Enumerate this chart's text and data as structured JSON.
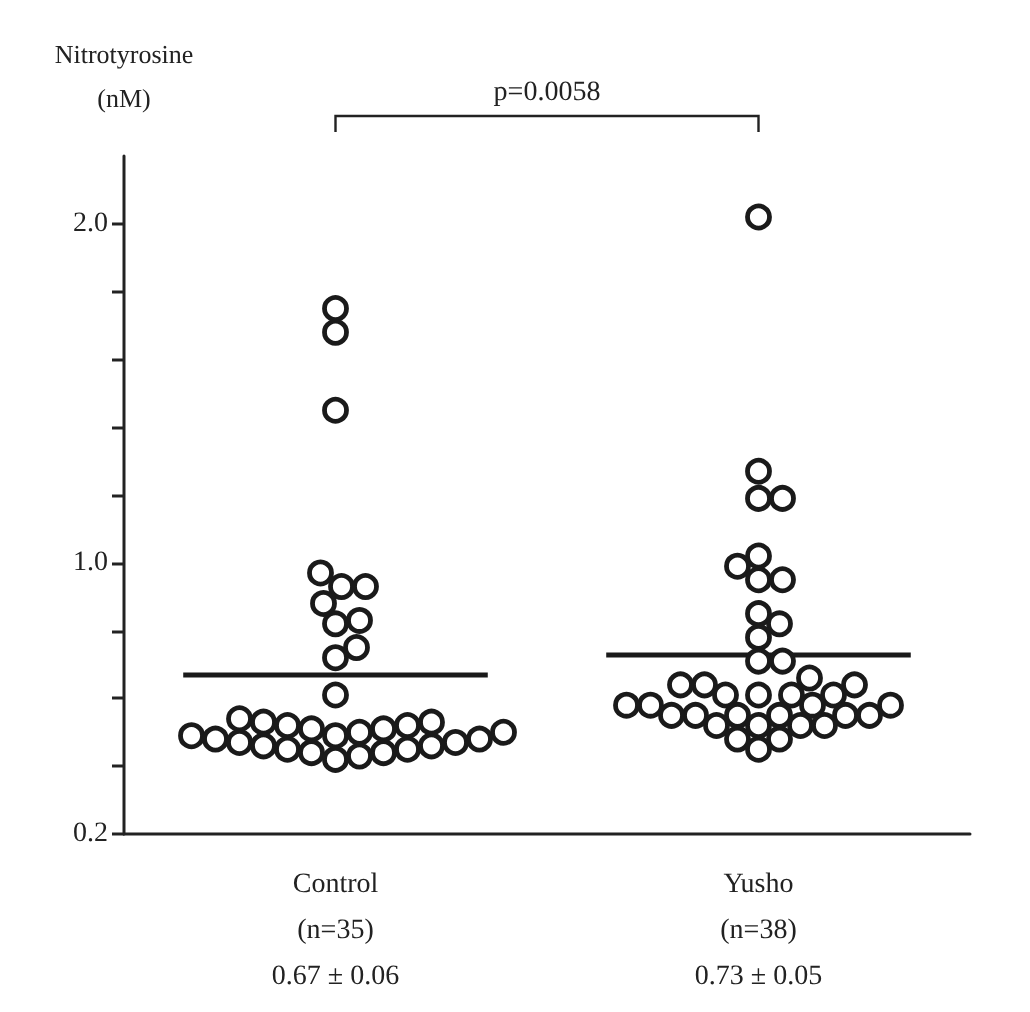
{
  "chart_data": {
    "type": "scatter",
    "ylabel": "Nitrotyrosine\n(nM)",
    "categories": [
      "Control\n(n=35)\n0.67 ± 0.06",
      "Yusho\n(n=38)\n0.73 ± 0.05"
    ],
    "ylim": [
      0.2,
      2.2
    ],
    "yticks": [
      0.2,
      {
        "value": 0.4,
        "label": null
      },
      {
        "value": 0.6,
        "label": null
      },
      {
        "value": 0.8,
        "label": null
      },
      {
        "value": 1.0,
        "label": "1.0"
      },
      {
        "value": 1.2,
        "label": null
      },
      {
        "value": 1.4,
        "label": null
      },
      {
        "value": 1.6,
        "label": null
      },
      {
        "value": 1.8,
        "label": null
      },
      {
        "value": 2.0,
        "label": "2.0"
      }
    ],
    "marker": "circle",
    "ref_lines": [
      {
        "axis": "y",
        "value": 0.67,
        "color": "#1a1a1a",
        "line_style": "solid"
      },
      {
        "axis": "y",
        "value": 0.73,
        "color": "#1a1a1a",
        "line_style": "solid"
      }
    ],
    "annotations": [
      "p=0.0058"
    ],
    "series": [
      {
        "color": "#1a1a1a",
        "x": [
          "Control\n(n=35)\n0.67 ± 0.06",
          "Control\n(n=35)\n0.67 ± 0.06",
          "Control\n(n=35)\n0.67 ± 0.06",
          "Control\n(n=35)\n0.67 ± 0.06",
          "Control\n(n=35)\n0.67 ± 0.06",
          "Control\n(n=35)\n0.67 ± 0.06",
          "Control\n(n=35)\n0.67 ± 0.06",
          "Control\n(n=35)\n0.67 ± 0.06",
          "Control\n(n=35)\n0.67 ± 0.06",
          "Control\n(n=35)\n0.67 ± 0.06",
          "Control\n(n=35)\n0.67 ± 0.06",
          "Control\n(n=35)\n0.67 ± 0.06",
          "Control\n(n=35)\n0.67 ± 0.06",
          "Control\n(n=35)\n0.67 ± 0.06",
          "Control\n(n=35)\n0.67 ± 0.06",
          "Control\n(n=35)\n0.67 ± 0.06",
          "Control\n(n=35)\n0.67 ± 0.06",
          "Control\n(n=35)\n0.67 ± 0.06",
          "Control\n(n=35)\n0.67 ± 0.06",
          "Control\n(n=35)\n0.67 ± 0.06",
          "Control\n(n=35)\n0.67 ± 0.06",
          "Control\n(n=35)\n0.67 ± 0.06",
          "Control\n(n=35)\n0.67 ± 0.06",
          "Control\n(n=35)\n0.67 ± 0.06",
          "Control\n(n=35)\n0.67 ± 0.06",
          "Control\n(n=35)\n0.67 ± 0.06",
          "Control\n(n=35)\n0.67 ± 0.06",
          "Control\n(n=35)\n0.67 ± 0.06",
          "Control\n(n=35)\n0.67 ± 0.06",
          "Control\n(n=35)\n0.67 ± 0.06",
          "Control\n(n=35)\n0.67 ± 0.06",
          "Control\n(n=35)\n0.67 ± 0.06",
          "Control\n(n=35)\n0.67 ± 0.06",
          "Control\n(n=35)\n0.67 ± 0.06",
          "Control\n(n=35)\n0.67 ± 0.06"
        ],
        "values": [
          1.75,
          1.68,
          1.45,
          0.97,
          0.93,
          0.93,
          0.88,
          0.83,
          0.82,
          0.75,
          0.72,
          0.61,
          0.54,
          0.53,
          0.53,
          0.52,
          0.52,
          0.51,
          0.51,
          0.5,
          0.5,
          0.49,
          0.49,
          0.48,
          0.48,
          0.47,
          0.47,
          0.46,
          0.46,
          0.45,
          0.45,
          0.44,
          0.44,
          0.43,
          0.42
        ]
      },
      {
        "color": "#1a1a1a",
        "x": [
          "Yusho\n(n=38)\n0.73 ± 0.05",
          "Yusho\n(n=38)\n0.73 ± 0.05",
          "Yusho\n(n=38)\n0.73 ± 0.05",
          "Yusho\n(n=38)\n0.73 ± 0.05",
          "Yusho\n(n=38)\n0.73 ± 0.05",
          "Yusho\n(n=38)\n0.73 ± 0.05",
          "Yusho\n(n=38)\n0.73 ± 0.05",
          "Yusho\n(n=38)\n0.73 ± 0.05",
          "Yusho\n(n=38)\n0.73 ± 0.05",
          "Yusho\n(n=38)\n0.73 ± 0.05",
          "Yusho\n(n=38)\n0.73 ± 0.05",
          "Yusho\n(n=38)\n0.73 ± 0.05",
          "Yusho\n(n=38)\n0.73 ± 0.05",
          "Yusho\n(n=38)\n0.73 ± 0.05",
          "Yusho\n(n=38)\n0.73 ± 0.05",
          "Yusho\n(n=38)\n0.73 ± 0.05",
          "Yusho\n(n=38)\n0.73 ± 0.05",
          "Yusho\n(n=38)\n0.73 ± 0.05",
          "Yusho\n(n=38)\n0.73 ± 0.05",
          "Yusho\n(n=38)\n0.73 ± 0.05",
          "Yusho\n(n=38)\n0.73 ± 0.05",
          "Yusho\n(n=38)\n0.73 ± 0.05",
          "Yusho\n(n=38)\n0.73 ± 0.05",
          "Yusho\n(n=38)\n0.73 ± 0.05",
          "Yusho\n(n=38)\n0.73 ± 0.05",
          "Yusho\n(n=38)\n0.73 ± 0.05",
          "Yusho\n(n=38)\n0.73 ± 0.05",
          "Yusho\n(n=38)\n0.73 ± 0.05",
          "Yusho\n(n=38)\n0.73 ± 0.05",
          "Yusho\n(n=38)\n0.73 ± 0.05",
          "Yusho\n(n=38)\n0.73 ± 0.05",
          "Yusho\n(n=38)\n0.73 ± 0.05",
          "Yusho\n(n=38)\n0.73 ± 0.05",
          "Yusho\n(n=38)\n0.73 ± 0.05",
          "Yusho\n(n=38)\n0.73 ± 0.05",
          "Yusho\n(n=38)\n0.73 ± 0.05",
          "Yusho\n(n=38)\n0.73 ± 0.05",
          "Yusho\n(n=38)\n0.73 ± 0.05"
        ],
        "values": [
          2.02,
          1.27,
          1.19,
          1.19,
          1.02,
          0.99,
          0.95,
          0.95,
          0.85,
          0.82,
          0.78,
          0.71,
          0.71,
          0.66,
          0.64,
          0.64,
          0.64,
          0.61,
          0.61,
          0.61,
          0.61,
          0.58,
          0.58,
          0.58,
          0.58,
          0.55,
          0.55,
          0.55,
          0.55,
          0.55,
          0.55,
          0.52,
          0.52,
          0.52,
          0.52,
          0.48,
          0.48,
          0.45
        ]
      }
    ]
  }
}
